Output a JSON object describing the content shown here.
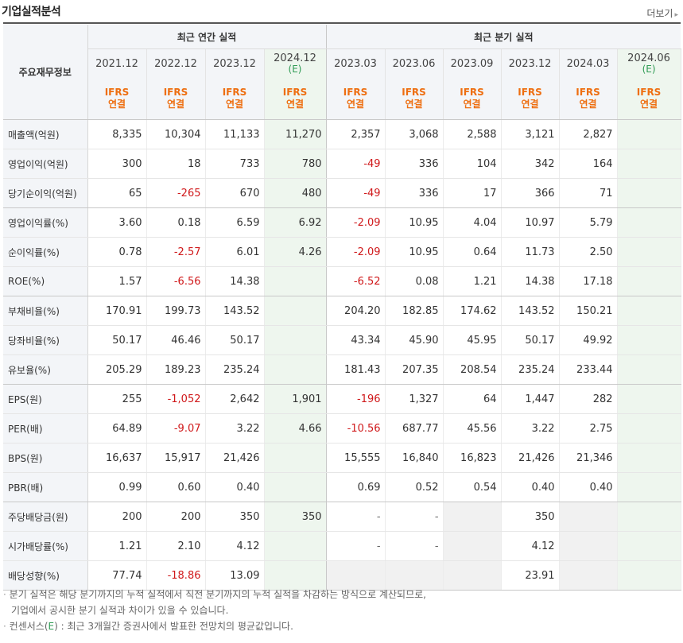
{
  "header": {
    "title": "기업실적분석",
    "more_label": "더보기"
  },
  "table": {
    "row_label_header": "주요재무정보",
    "annual_group": "최근 연간 실적",
    "quarter_group": "최근 분기 실적",
    "periods": [
      {
        "label": "2021.12",
        "est": "",
        "ifrs": "IFRS",
        "basis": "연결"
      },
      {
        "label": "2022.12",
        "est": "",
        "ifrs": "IFRS",
        "basis": "연결"
      },
      {
        "label": "2023.12",
        "est": "",
        "ifrs": "IFRS",
        "basis": "연결"
      },
      {
        "label": "2024.12",
        "est": "(E)",
        "ifrs": "IFRS",
        "basis": "연결"
      },
      {
        "label": "2023.03",
        "est": "",
        "ifrs": "IFRS",
        "basis": "연결"
      },
      {
        "label": "2023.06",
        "est": "",
        "ifrs": "IFRS",
        "basis": "연결"
      },
      {
        "label": "2023.09",
        "est": "",
        "ifrs": "IFRS",
        "basis": "연결"
      },
      {
        "label": "2023.12",
        "est": "",
        "ifrs": "IFRS",
        "basis": "연결"
      },
      {
        "label": "2024.03",
        "est": "",
        "ifrs": "IFRS",
        "basis": "연결"
      },
      {
        "label": "2024.06",
        "est": "(E)",
        "ifrs": "IFRS",
        "basis": "연결"
      }
    ],
    "rows": [
      {
        "name": "매출액(억원)",
        "values": [
          "8,335",
          "10,304",
          "11,133",
          "11,270",
          "2,357",
          "3,068",
          "2,588",
          "3,121",
          "2,827",
          ""
        ]
      },
      {
        "name": "영업이익(억원)",
        "values": [
          "300",
          "18",
          "733",
          "780",
          "-49",
          "336",
          "104",
          "342",
          "164",
          ""
        ]
      },
      {
        "name": "당기순이익(억원)",
        "values": [
          "65",
          "-265",
          "670",
          "480",
          "-49",
          "336",
          "17",
          "366",
          "71",
          ""
        ]
      },
      {
        "name": "영업이익률(%)",
        "values": [
          "3.60",
          "0.18",
          "6.59",
          "6.92",
          "-2.09",
          "10.95",
          "4.04",
          "10.97",
          "5.79",
          ""
        ]
      },
      {
        "name": "순이익률(%)",
        "values": [
          "0.78",
          "-2.57",
          "6.01",
          "4.26",
          "-2.09",
          "10.95",
          "0.64",
          "11.73",
          "2.50",
          ""
        ]
      },
      {
        "name": "ROE(%)",
        "values": [
          "1.57",
          "-6.56",
          "14.38",
          "",
          "-6.52",
          "0.08",
          "1.21",
          "14.38",
          "17.18",
          ""
        ]
      },
      {
        "name": "부채비율(%)",
        "values": [
          "170.91",
          "199.73",
          "143.52",
          "",
          "204.20",
          "182.85",
          "174.62",
          "143.52",
          "150.21",
          ""
        ]
      },
      {
        "name": "당좌비율(%)",
        "values": [
          "50.17",
          "46.46",
          "50.17",
          "",
          "43.34",
          "45.90",
          "45.95",
          "50.17",
          "49.92",
          ""
        ]
      },
      {
        "name": "유보율(%)",
        "values": [
          "205.29",
          "189.23",
          "235.24",
          "",
          "181.43",
          "207.35",
          "208.54",
          "235.24",
          "233.44",
          ""
        ]
      },
      {
        "name": "EPS(원)",
        "values": [
          "255",
          "-1,052",
          "2,642",
          "1,901",
          "-196",
          "1,327",
          "64",
          "1,447",
          "282",
          ""
        ]
      },
      {
        "name": "PER(배)",
        "values": [
          "64.89",
          "-9.07",
          "3.22",
          "4.66",
          "-10.56",
          "687.77",
          "45.56",
          "3.22",
          "2.75",
          ""
        ]
      },
      {
        "name": "BPS(원)",
        "values": [
          "16,637",
          "15,917",
          "21,426",
          "",
          "15,555",
          "16,840",
          "16,823",
          "21,426",
          "21,346",
          ""
        ]
      },
      {
        "name": "PBR(배)",
        "values": [
          "0.99",
          "0.60",
          "0.40",
          "",
          "0.69",
          "0.52",
          "0.54",
          "0.40",
          "0.40",
          ""
        ]
      },
      {
        "name": "주당배당금(원)",
        "values": [
          "200",
          "200",
          "350",
          "350",
          "-",
          "-",
          "",
          "350",
          "",
          ""
        ]
      },
      {
        "name": "시가배당률(%)",
        "values": [
          "1.21",
          "2.10",
          "4.12",
          "",
          "-",
          "-",
          "",
          "4.12",
          "",
          ""
        ]
      },
      {
        "name": "배당성향(%)",
        "values": [
          "77.74",
          "-18.86",
          "13.09",
          "",
          "",
          "",
          "",
          "23.91",
          "",
          ""
        ]
      }
    ]
  },
  "notes": {
    "line1": "분기 실적은 해당 분기까지의 누적 실적에서 직전 분기까지의 누적 실적을 차감하는 방식으로 계산되므로,",
    "line2": "기업에서 공시한 분기 실적과 차이가 있을 수 있습니다.",
    "line3_pre": "컨센서스(",
    "line3_e": "E",
    "line3_post": ") : 최근 3개월간 증권사에서 발표한 전망치의 평균값입니다."
  },
  "colors": {
    "negative": "#d0191b",
    "ifrs": "#ee6e10",
    "estimate": "#2f9b54",
    "header_bg": "#f3f5f8",
    "estimate_bg": "#eef6ee"
  }
}
